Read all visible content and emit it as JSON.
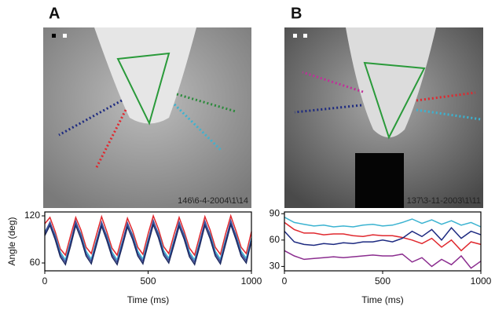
{
  "panels": [
    {
      "label": "A",
      "caption": "146\\6-4-2004\\1\\14"
    },
    {
      "label": "B",
      "caption": "137\\3-11-2003\\1\\11"
    }
  ],
  "chart_data": [
    {
      "type": "line",
      "ylabel": "Angle (deg)",
      "xlabel": "Time (ms)",
      "xlim": [
        0,
        1000
      ],
      "xticks": [
        0,
        500,
        1000
      ],
      "ylim": [
        50,
        125
      ],
      "yticks": [
        60,
        120
      ],
      "x": [
        0,
        25,
        50,
        75,
        100,
        125,
        150,
        175,
        200,
        225,
        250,
        275,
        300,
        325,
        350,
        375,
        400,
        425,
        450,
        475,
        500,
        525,
        550,
        575,
        600,
        625,
        650,
        675,
        700,
        725,
        750,
        775,
        800,
        825,
        850,
        875,
        900,
        925,
        950,
        975,
        1000
      ],
      "series": [
        {
          "color": "#e0282e",
          "values": [
            110,
            118,
            100,
            78,
            70,
            95,
            118,
            102,
            80,
            72,
            96,
            119,
            100,
            79,
            70,
            94,
            117,
            101,
            80,
            71,
            97,
            120,
            103,
            81,
            72,
            96,
            118,
            100,
            79,
            70,
            95,
            119,
            102,
            80,
            71,
            97,
            120,
            101,
            80,
            72,
            100
          ]
        },
        {
          "color": "#3bb3d1",
          "values": [
            100,
            110,
            96,
            74,
            64,
            88,
            111,
            97,
            75,
            65,
            89,
            110,
            95,
            74,
            64,
            87,
            109,
            96,
            75,
            65,
            90,
            112,
            98,
            76,
            66,
            89,
            110,
            96,
            74,
            64,
            88,
            111,
            97,
            75,
            65,
            90,
            112,
            96,
            75,
            66,
            92
          ]
        },
        {
          "color": "#3a4a9a",
          "values": [
            98,
            112,
            94,
            71,
            61,
            86,
            113,
            95,
            72,
            62,
            87,
            112,
            93,
            71,
            61,
            85,
            111,
            94,
            72,
            62,
            88,
            114,
            96,
            73,
            63,
            87,
            112,
            94,
            71,
            61,
            86,
            113,
            95,
            72,
            62,
            88,
            114,
            94,
            72,
            63,
            90
          ]
        },
        {
          "color": "#1d2a60",
          "values": [
            95,
            108,
            90,
            68,
            58,
            82,
            108,
            91,
            69,
            59,
            83,
            107,
            89,
            68,
            58,
            81,
            106,
            90,
            69,
            59,
            84,
            109,
            92,
            70,
            60,
            83,
            107,
            90,
            68,
            58,
            82,
            108,
            91,
            69,
            59,
            84,
            109,
            90,
            69,
            60,
            88
          ]
        }
      ]
    },
    {
      "type": "line",
      "xlabel": "Time (ms)",
      "xlim": [
        0,
        1000
      ],
      "xticks": [
        0,
        500,
        1000
      ],
      "ylim": [
        25,
        92
      ],
      "yticks": [
        30,
        60,
        90
      ],
      "x": [
        0,
        50,
        100,
        150,
        200,
        250,
        300,
        350,
        400,
        450,
        500,
        550,
        600,
        650,
        700,
        750,
        800,
        850,
        900,
        950,
        1000
      ],
      "series": [
        {
          "color": "#3bb3d1",
          "values": [
            86,
            80,
            78,
            76,
            77,
            75,
            76,
            75,
            77,
            78,
            76,
            77,
            80,
            84,
            79,
            83,
            78,
            82,
            77,
            80,
            75
          ]
        },
        {
          "color": "#e0282e",
          "values": [
            80,
            72,
            68,
            68,
            66,
            67,
            67,
            65,
            64,
            66,
            65,
            65,
            63,
            60,
            56,
            62,
            52,
            60,
            48,
            58,
            55
          ]
        },
        {
          "color": "#1d2a80",
          "values": [
            70,
            58,
            55,
            54,
            56,
            55,
            57,
            56,
            58,
            58,
            60,
            58,
            62,
            70,
            64,
            72,
            60,
            74,
            62,
            70,
            66
          ]
        },
        {
          "color": "#8b2d8f",
          "values": [
            48,
            42,
            38,
            39,
            40,
            41,
            40,
            41,
            42,
            43,
            42,
            42,
            44,
            35,
            40,
            30,
            38,
            32,
            42,
            28,
            36
          ]
        }
      ]
    }
  ]
}
